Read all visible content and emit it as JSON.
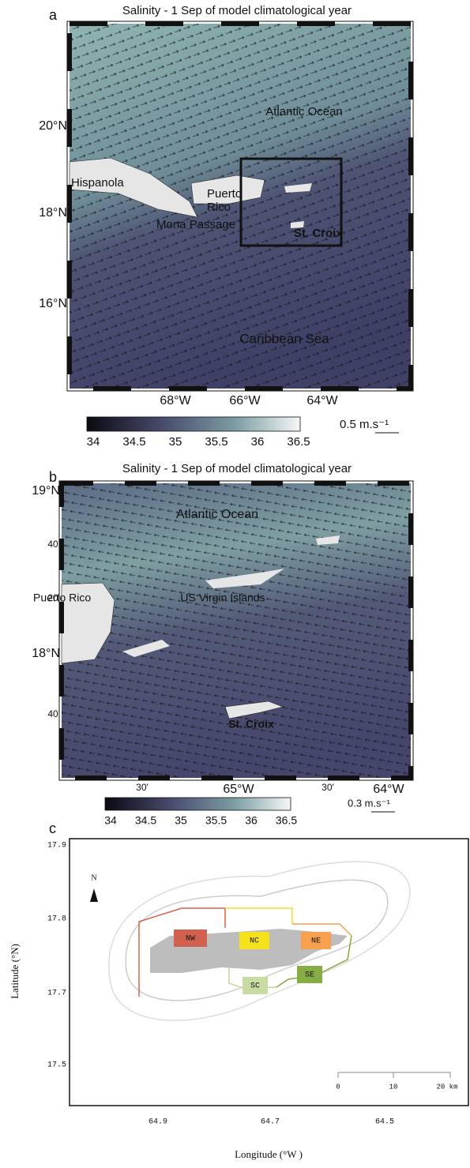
{
  "panel_a": {
    "label": "a",
    "title": "Salinity - 1 Sep of model climatological year",
    "places": [
      "Atlantic Ocean",
      "Hispanola",
      "Puerto",
      "Rico",
      "Mona Passage",
      "St. Croix",
      "Caribbean Sea"
    ],
    "lat_labels": [
      "20°N",
      "18°N",
      "16°N"
    ],
    "lon_labels": [
      "68°W",
      "66°W",
      "64°W"
    ],
    "colorbar_labels": [
      "34",
      "34.5",
      "35",
      "35.5",
      "36",
      "36.5"
    ],
    "scale": "0.5 m.s⁻¹"
  },
  "panel_b": {
    "label": "b",
    "title": "Salinity - 1 Sep of model climatological year",
    "places": [
      "Atlantic Ocean",
      "Puerto Rico",
      "US Virgin Islands",
      "St. Croix"
    ],
    "lat_labels": [
      "19°N",
      "40'",
      "20'",
      "18°N",
      "40'"
    ],
    "lon_labels": [
      "30'",
      "65°W",
      "30'",
      "64°W"
    ],
    "colorbar_labels": [
      "34",
      "34.5",
      "35",
      "35.5",
      "36",
      "36.5"
    ],
    "scale": "0.3 m.s⁻¹"
  },
  "panel_c": {
    "label": "c",
    "north": "N",
    "zones": [
      "NW",
      "NC",
      "NE",
      "SC",
      "SE"
    ],
    "lat_labels": [
      "17.9",
      "17.8",
      "17.7",
      "17.5"
    ],
    "lon_labels": [
      "64.9",
      "64.7",
      "64.5"
    ],
    "x_axis_title": "Longitude (°W )",
    "y_axis_title": "Latitude (°N)",
    "scale_labels": [
      "0",
      "10",
      "20 km"
    ]
  }
}
